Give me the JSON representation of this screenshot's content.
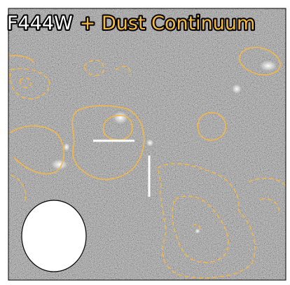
{
  "title": {
    "band": "F444W",
    "overlay": "+ Dust Continuum"
  }
}
